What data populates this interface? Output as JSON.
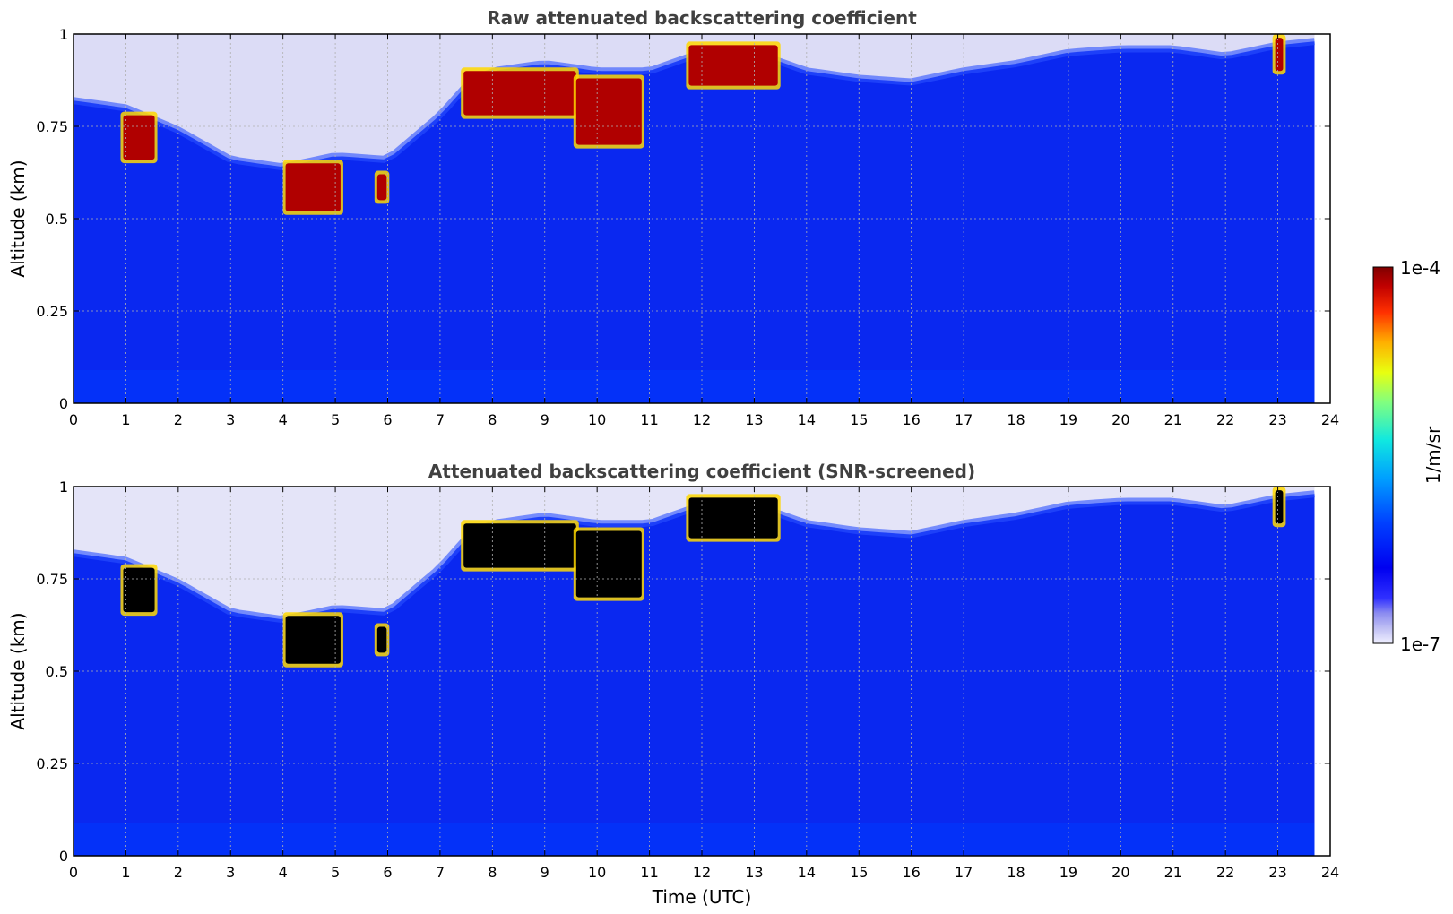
{
  "chart_data": [
    {
      "type": "heatmap",
      "title": "Raw attenuated backscattering coefficient",
      "xlabel": "",
      "ylabel": "Altitude (km)",
      "xlim": [
        0,
        24
      ],
      "ylim": [
        0,
        1
      ],
      "xticks": [
        0,
        1,
        2,
        3,
        4,
        5,
        6,
        7,
        8,
        9,
        10,
        11,
        12,
        13,
        14,
        15,
        16,
        17,
        18,
        19,
        20,
        21,
        22,
        23,
        24
      ],
      "yticks": [
        0,
        0.25,
        0.5,
        0.75,
        1
      ],
      "ytick_labels": [
        "0",
        "0.25",
        "0.5",
        "0.75",
        "1"
      ],
      "grid": true,
      "data_end_time": 23.7,
      "boundary_layer_top_km": {
        "time": [
          0,
          1,
          2,
          3,
          4,
          5,
          6,
          7,
          7.5,
          8,
          9,
          10,
          11,
          12,
          13,
          14,
          15,
          16,
          17,
          18,
          19,
          20,
          21,
          22,
          23,
          23.7
        ],
        "value": [
          0.82,
          0.8,
          0.74,
          0.66,
          0.64,
          0.67,
          0.66,
          0.78,
          0.86,
          0.9,
          0.92,
          0.9,
          0.9,
          0.95,
          0.95,
          0.9,
          0.88,
          0.87,
          0.9,
          0.92,
          0.95,
          0.96,
          0.96,
          0.94,
          0.97,
          0.98
        ]
      },
      "cloud_layers": [
        {
          "t0": 0.95,
          "t1": 1.55,
          "bottom_km": 0.66,
          "top_km": 0.78
        },
        {
          "t0": 4.05,
          "t1": 5.1,
          "bottom_km": 0.52,
          "top_km": 0.65
        },
        {
          "t0": 5.8,
          "t1": 5.98,
          "bottom_km": 0.55,
          "top_km": 0.62
        },
        {
          "t0": 7.45,
          "t1": 9.6,
          "bottom_km": 0.78,
          "top_km": 0.9
        },
        {
          "t0": 9.6,
          "t1": 10.85,
          "bottom_km": 0.7,
          "top_km": 0.88
        },
        {
          "t0": 11.75,
          "t1": 13.45,
          "bottom_km": 0.86,
          "top_km": 0.97
        },
        {
          "t0": 22.95,
          "t1": 23.1,
          "bottom_km": 0.9,
          "top_km": 0.99
        }
      ],
      "colorbar": {
        "label": "1/m/sr",
        "min_label": "1e-7",
        "max_label": "1e-4",
        "colormap": "jet",
        "scale": "log"
      }
    },
    {
      "type": "heatmap",
      "title": "Attenuated backscattering coefficient (SNR-screened)",
      "xlabel": "Time (UTC)",
      "ylabel": "Altitude (km)",
      "xlim": [
        0,
        24
      ],
      "ylim": [
        0,
        1
      ],
      "xticks": [
        0,
        1,
        2,
        3,
        4,
        5,
        6,
        7,
        8,
        9,
        10,
        11,
        12,
        13,
        14,
        15,
        16,
        17,
        18,
        19,
        20,
        21,
        22,
        23,
        24
      ],
      "yticks": [
        0,
        0.25,
        0.5,
        0.75,
        1
      ],
      "ytick_labels": [
        "0",
        "0.25",
        "0.5",
        "0.75",
        "1"
      ],
      "grid": true,
      "data_end_time": 23.7,
      "saturated_color": "#000000",
      "screened_color": "#e4e4f8"
    }
  ],
  "colorbar": {
    "label": "1/m/sr",
    "min_label": "1e-7",
    "max_label": "1e-4"
  }
}
